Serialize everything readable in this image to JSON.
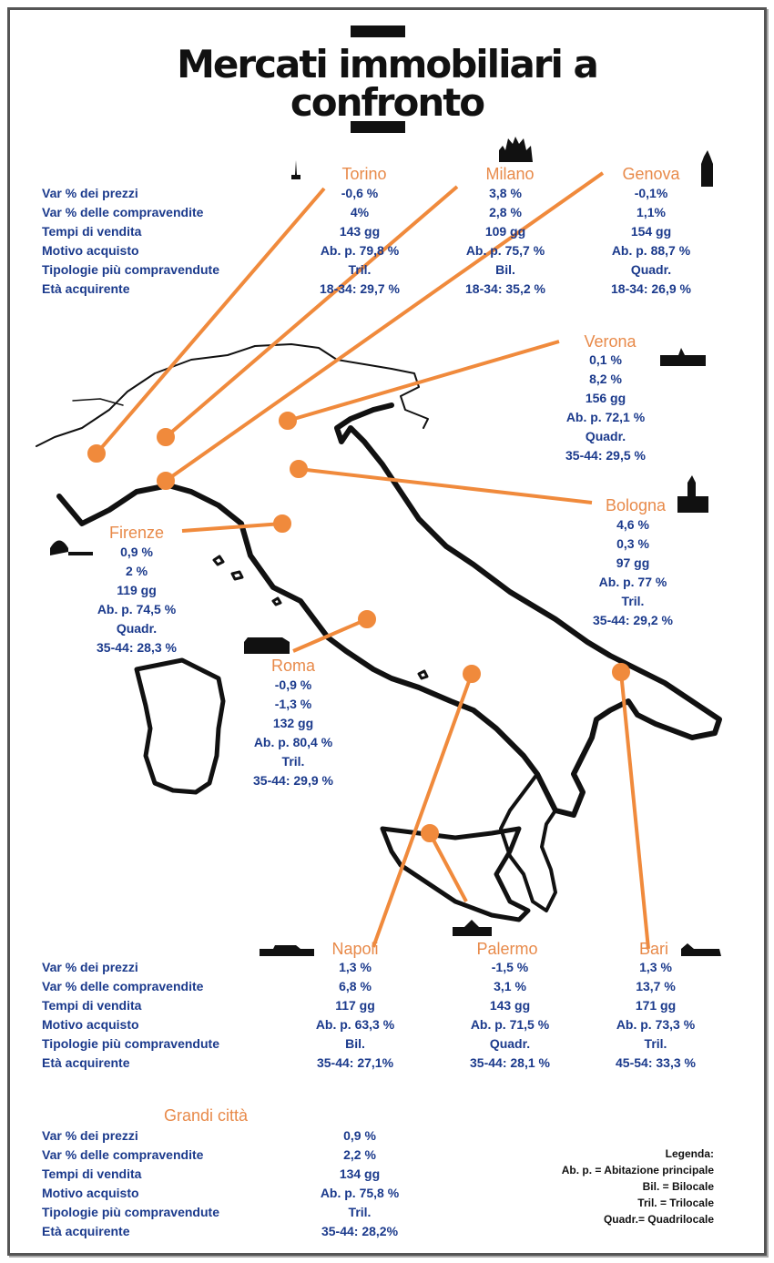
{
  "title": {
    "line1": "Mercati immobiliari a",
    "line2": "confronto"
  },
  "labels": [
    "Var % dei prezzi",
    "Var % delle compravendite",
    "Tempi di vendita",
    "Motivo acquisto",
    "Tipologie più compravendute",
    "Età acquirente"
  ],
  "cities": {
    "torino": {
      "name": "Torino",
      "v": [
        "-0,6 %",
        "4%",
        "143 gg",
        "Ab. p. 79,8 %",
        "Tril.",
        "18-34: 29,7 %"
      ]
    },
    "milano": {
      "name": "Milano",
      "v": [
        "3,8 %",
        "2,8 %",
        "109 gg",
        "Ab. p. 75,7 %",
        "Bil.",
        "18-34:  35,2 %"
      ]
    },
    "genova": {
      "name": "Genova",
      "v": [
        "-0,1%",
        "1,1%",
        "154 gg",
        "Ab. p. 88,7 %",
        "Quadr.",
        "18-34: 26,9 %"
      ]
    },
    "verona": {
      "name": "Verona",
      "v": [
        "0,1 %",
        "8,2 %",
        "156 gg",
        "Ab. p. 72,1 %",
        "Quadr.",
        "35-44: 29,5 %"
      ]
    },
    "bologna": {
      "name": "Bologna",
      "v": [
        "4,6 %",
        "0,3 %",
        "97 gg",
        "Ab. p. 77 %",
        "Tril.",
        "35-44: 29,2 %"
      ]
    },
    "firenze": {
      "name": "Firenze",
      "v": [
        "0,9 %",
        "2 %",
        "119 gg",
        "Ab. p. 74,5 %",
        "Quadr.",
        "35-44: 28,3 %"
      ]
    },
    "roma": {
      "name": "Roma",
      "v": [
        "-0,9 %",
        "-1,3 %",
        "132 gg",
        "Ab. p. 80,4 %",
        "Tril.",
        "35-44: 29,9 %"
      ]
    },
    "napoli": {
      "name": "Napoli",
      "v": [
        "1,3 %",
        "6,8 %",
        "117 gg",
        "Ab. p. 63,3 %",
        "Bil.",
        "35-44: 27,1%"
      ]
    },
    "palermo": {
      "name": "Palermo",
      "v": [
        "-1,5 %",
        "3,1 %",
        "143 gg",
        "Ab. p. 71,5 %",
        "Quadr.",
        "35-44: 28,1 %"
      ]
    },
    "bari": {
      "name": "Bari",
      "v": [
        "1,3 %",
        "13,7 %",
        "171 gg",
        "Ab. p. 73,3 %",
        "Tril.",
        "45-54: 33,3 %"
      ]
    },
    "grandi": {
      "name": "Grandi città",
      "v": [
        "0,9 %",
        "2,2 %",
        "134 gg",
        "Ab. p. 75,8 %",
        "Tril.",
        "35-44: 28,2%"
      ]
    }
  },
  "legend": {
    "title": "Legenda:",
    "items": [
      "Ab. p. = Abitazione principale",
      "Bil. = Bilocale",
      "Tril. = Trilocale",
      "Quadr.= Quadrilocale"
    ]
  },
  "colors": {
    "accent": "#e88a4a",
    "text": "#1b3a8c",
    "map": "#111111"
  },
  "icons": [
    "mole-antonelliana-icon",
    "duomo-milano-icon",
    "lanterna-genova-icon",
    "arena-verona-icon",
    "torri-bologna-icon",
    "duomo-firenze-icon",
    "colosseo-icon",
    "napoli-skyline-icon",
    "palermo-teatro-icon",
    "bari-skyline-icon"
  ]
}
